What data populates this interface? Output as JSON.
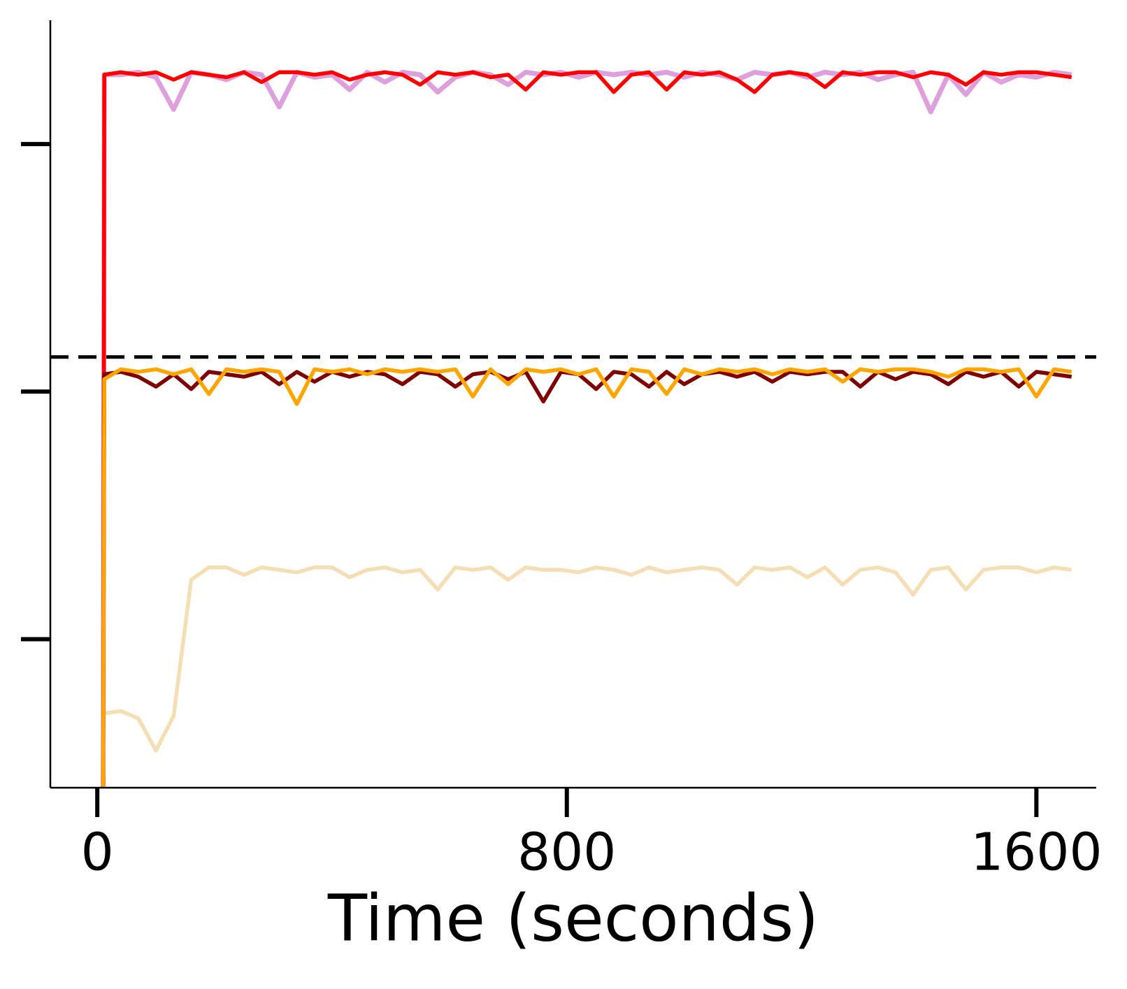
{
  "chart_data": {
    "type": "line",
    "xlabel": "Time (seconds)",
    "x": [
      10,
      12,
      40,
      70,
      100,
      130,
      160,
      190,
      220,
      250,
      280,
      310,
      340,
      370,
      400,
      430,
      460,
      490,
      520,
      550,
      580,
      610,
      640,
      670,
      700,
      730,
      760,
      790,
      820,
      850,
      880,
      910,
      940,
      970,
      1000,
      1030,
      1060,
      1090,
      1120,
      1150,
      1180,
      1210,
      1240,
      1270,
      1300,
      1330,
      1360,
      1390,
      1420,
      1450,
      1480,
      1510,
      1540,
      1570,
      1600,
      1630,
      1660
    ],
    "xlim": [
      -80,
      1702
    ],
    "xticks": [
      0,
      800,
      1600
    ],
    "ylim": [
      -0.6,
      2.5
    ],
    "yticks": [
      0,
      1,
      2
    ],
    "hline": {
      "value": 1.14,
      "color": "#000000",
      "dashed": true
    },
    "series": [
      {
        "color": "#f5deb3",
        "values": [
          -0.3,
          -0.3,
          -0.29,
          -0.32,
          -0.45,
          -0.31,
          0.24,
          0.29,
          0.29,
          0.26,
          0.29,
          0.28,
          0.27,
          0.29,
          0.29,
          0.25,
          0.28,
          0.29,
          0.27,
          0.28,
          0.2,
          0.29,
          0.28,
          0.29,
          0.24,
          0.29,
          0.28,
          0.28,
          0.27,
          0.29,
          0.28,
          0.26,
          0.29,
          0.27,
          0.28,
          0.29,
          0.28,
          0.22,
          0.29,
          0.28,
          0.29,
          0.25,
          0.29,
          0.22,
          0.28,
          0.29,
          0.27,
          0.18,
          0.28,
          0.29,
          0.2,
          0.28,
          0.29,
          0.29,
          0.27,
          0.29,
          0.28
        ]
      },
      {
        "color": "#dda0dd",
        "values": [
          -0.6,
          2.28,
          2.28,
          2.29,
          2.27,
          2.14,
          2.29,
          2.28,
          2.26,
          2.29,
          2.28,
          2.15,
          2.29,
          2.27,
          2.28,
          2.22,
          2.29,
          2.25,
          2.29,
          2.28,
          2.21,
          2.27,
          2.29,
          2.28,
          2.24,
          2.29,
          2.28,
          2.29,
          2.27,
          2.29,
          2.28,
          2.29,
          2.28,
          2.29,
          2.27,
          2.29,
          2.28,
          2.26,
          2.29,
          2.28,
          2.29,
          2.27,
          2.29,
          2.28,
          2.29,
          2.26,
          2.28,
          2.29,
          2.13,
          2.28,
          2.2,
          2.29,
          2.25,
          2.28,
          2.27,
          2.29,
          2.28
        ]
      },
      {
        "color": "#ff0000",
        "values": [
          -0.6,
          2.28,
          2.29,
          2.28,
          2.29,
          2.26,
          2.29,
          2.28,
          2.27,
          2.29,
          2.25,
          2.29,
          2.29,
          2.28,
          2.29,
          2.26,
          2.28,
          2.29,
          2.28,
          2.24,
          2.29,
          2.28,
          2.29,
          2.27,
          2.28,
          2.22,
          2.29,
          2.28,
          2.29,
          2.29,
          2.21,
          2.28,
          2.29,
          2.22,
          2.29,
          2.28,
          2.29,
          2.26,
          2.21,
          2.28,
          2.29,
          2.28,
          2.23,
          2.29,
          2.28,
          2.29,
          2.29,
          2.27,
          2.29,
          2.28,
          2.24,
          2.29,
          2.28,
          2.29,
          2.29,
          2.28,
          2.27
        ]
      },
      {
        "color": "#800000",
        "values": [
          -0.6,
          1.07,
          1.08,
          1.06,
          1.02,
          1.07,
          1.01,
          1.08,
          1.07,
          1.06,
          1.08,
          1.03,
          1.08,
          1.04,
          1.08,
          1.06,
          1.08,
          1.07,
          1.03,
          1.08,
          1.07,
          1.02,
          1.07,
          1.08,
          1.05,
          1.08,
          0.96,
          1.08,
          1.07,
          1.01,
          1.08,
          1.07,
          1.02,
          1.08,
          1.03,
          1.07,
          1.08,
          1.06,
          1.08,
          1.04,
          1.08,
          1.07,
          1.08,
          1.08,
          1.02,
          1.08,
          1.05,
          1.08,
          1.07,
          1.03,
          1.08,
          1.06,
          1.08,
          1.02,
          1.08,
          1.07,
          1.06
        ]
      },
      {
        "color": "#ffa500",
        "values": [
          -0.6,
          1.05,
          1.09,
          1.08,
          1.09,
          1.07,
          1.09,
          0.99,
          1.09,
          1.08,
          1.09,
          1.08,
          0.95,
          1.09,
          1.08,
          1.09,
          1.07,
          1.09,
          1.08,
          1.09,
          1.08,
          1.09,
          0.98,
          1.09,
          1.03,
          1.09,
          1.08,
          1.09,
          1.07,
          1.09,
          0.98,
          1.09,
          1.08,
          0.99,
          1.09,
          1.07,
          1.09,
          1.08,
          1.09,
          1.07,
          1.09,
          1.08,
          1.09,
          1.04,
          1.09,
          1.08,
          1.09,
          1.09,
          1.08,
          1.06,
          1.09,
          1.09,
          1.08,
          1.09,
          0.98,
          1.09,
          1.08
        ]
      }
    ]
  }
}
